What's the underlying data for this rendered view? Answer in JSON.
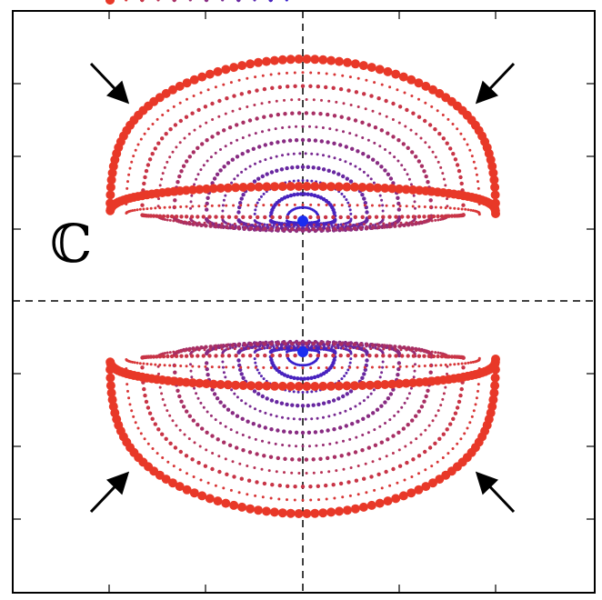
{
  "label": "ℂ"
}
